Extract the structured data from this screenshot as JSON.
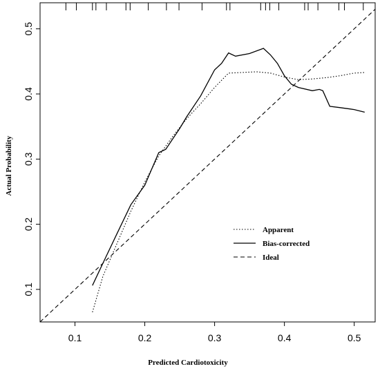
{
  "chart_data": {
    "type": "line",
    "xlabel": "Predicted Cardiotoxicity",
    "ylabel": "Actual Probability",
    "xlim": [
      0.05,
      0.53
    ],
    "ylim": [
      0.05,
      0.54
    ],
    "x_ticks": [
      0.1,
      0.2,
      0.3,
      0.4,
      0.5
    ],
    "y_ticks": [
      0.1,
      0.2,
      0.3,
      0.4,
      0.5
    ],
    "x_tick_labels": [
      "0.1",
      "0.2",
      "0.3",
      "0.4",
      "0.5"
    ],
    "y_tick_labels": [
      "0.1",
      "0.2",
      "0.3",
      "0.4",
      "0.5"
    ],
    "grid": false,
    "legend_position": "center-right",
    "rug": [
      0.087,
      0.102,
      0.125,
      0.13,
      0.145,
      0.173,
      0.179,
      0.205,
      0.231,
      0.249,
      0.282,
      0.317,
      0.322,
      0.366,
      0.373,
      0.379,
      0.392,
      0.429,
      0.434,
      0.448,
      0.478,
      0.486,
      0.513
    ],
    "series": [
      {
        "name": "Apparent",
        "style": "dotted",
        "x": [
          0.125,
          0.14,
          0.16,
          0.18,
          0.2,
          0.22,
          0.24,
          0.26,
          0.28,
          0.3,
          0.32,
          0.34,
          0.36,
          0.38,
          0.4,
          0.42,
          0.44,
          0.46,
          0.48,
          0.5,
          0.515
        ],
        "y": [
          0.065,
          0.12,
          0.17,
          0.22,
          0.265,
          0.305,
          0.335,
          0.362,
          0.385,
          0.41,
          0.432,
          0.433,
          0.434,
          0.432,
          0.426,
          0.422,
          0.423,
          0.425,
          0.428,
          0.432,
          0.433
        ]
      },
      {
        "name": "Bias-corrected",
        "style": "solid",
        "x": [
          0.125,
          0.14,
          0.16,
          0.18,
          0.2,
          0.22,
          0.23,
          0.25,
          0.26,
          0.28,
          0.3,
          0.31,
          0.32,
          0.33,
          0.35,
          0.37,
          0.38,
          0.39,
          0.4,
          0.41,
          0.42,
          0.44,
          0.45,
          0.455,
          0.465,
          0.48,
          0.5,
          0.515
        ],
        "y": [
          0.106,
          0.14,
          0.185,
          0.23,
          0.26,
          0.31,
          0.315,
          0.347,
          0.365,
          0.397,
          0.437,
          0.447,
          0.463,
          0.458,
          0.462,
          0.47,
          0.46,
          0.447,
          0.428,
          0.415,
          0.41,
          0.405,
          0.407,
          0.405,
          0.381,
          0.379,
          0.376,
          0.372
        ]
      },
      {
        "name": "Ideal",
        "style": "dashed",
        "x": [
          0.05,
          0.53
        ],
        "y": [
          0.05,
          0.53
        ]
      }
    ]
  }
}
